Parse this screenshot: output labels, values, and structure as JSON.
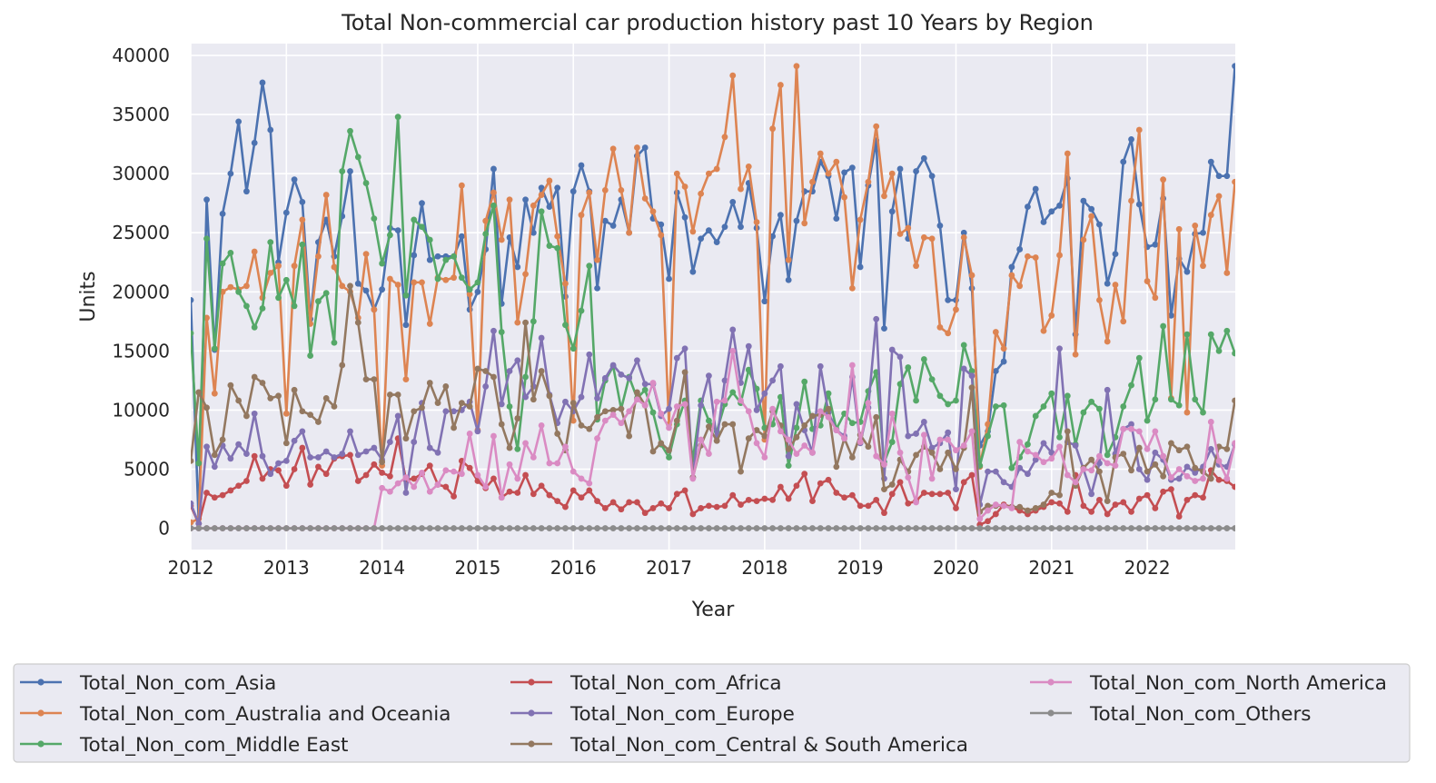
{
  "chart_data": {
    "type": "line",
    "title": "Total Non-commercial car production history past 10 Years by Region",
    "xlabel": "Year",
    "ylabel": "Units",
    "xlim": [
      2012.0,
      2022.92
    ],
    "ylim": [
      -1800,
      41000
    ],
    "x_ticks": [
      2012,
      2013,
      2014,
      2015,
      2016,
      2017,
      2018,
      2019,
      2020,
      2021,
      2022
    ],
    "y_ticks": [
      0,
      5000,
      10000,
      15000,
      20000,
      25000,
      30000,
      35000,
      40000
    ],
    "x_start": 2012.0,
    "x_step": 0.08333,
    "grid": true,
    "legend_position": "below",
    "colors": {
      "background": "#eaeaf2",
      "grid": "#ffffff",
      "text": "#262626"
    },
    "series": [
      {
        "name": "Total_Non_com_Asia",
        "color": "#4c72b0",
        "values": [
          19300,
          400,
          27800,
          15100,
          26600,
          30000,
          34400,
          28500,
          32600,
          37700,
          33700,
          22500,
          26700,
          29500,
          27600,
          17700,
          24200,
          26100,
          23000,
          26400,
          30200,
          20700,
          20100,
          18500,
          20200,
          25400,
          25200,
          17200,
          23100,
          27500,
          22700,
          23000,
          23000,
          23000,
          24700,
          18500,
          20000,
          23600,
          30400,
          19000,
          24600,
          22100,
          27800,
          25000,
          28800,
          27200,
          28800,
          19600,
          28500,
          30700,
          28500,
          20300,
          26000,
          25600,
          27800,
          25000,
          31500,
          32200,
          26200,
          25700,
          21100,
          28400,
          26300,
          21700,
          24500,
          25200,
          24200,
          25500,
          27600,
          25500,
          29200,
          25400,
          19200,
          24700,
          26500,
          21000,
          26000,
          28500,
          28500,
          31000,
          29800,
          26200,
          30100,
          30500,
          22100,
          29000,
          32800,
          16900,
          26800,
          30400,
          24500,
          30200,
          31300,
          29800,
          25600,
          19300,
          19300,
          25000,
          20300,
          7000,
          8200,
          13300,
          14100,
          22100,
          23600,
          27200,
          28700,
          25900,
          26800,
          27300,
          29600,
          16400,
          27700,
          27000,
          25700,
          20700,
          23200,
          31000,
          32900,
          27400,
          23800,
          24000,
          27900,
          18000,
          22800,
          21700,
          24900,
          25000,
          31000,
          29800,
          29800,
          39100
        ]
      },
      {
        "name": "Total_Non_com_Australia and Oceania",
        "color": "#dd8452",
        "values": [
          500,
          800,
          17800,
          11400,
          20000,
          20400,
          20200,
          20500,
          23400,
          19500,
          21600,
          22200,
          9700,
          22200,
          26100,
          17300,
          23000,
          28200,
          22100,
          20500,
          20000,
          17800,
          23200,
          18500,
          5300,
          21100,
          20600,
          12600,
          20800,
          20800,
          17300,
          21200,
          21000,
          21200,
          29000,
          19800,
          8300,
          26000,
          28400,
          24400,
          27800,
          17400,
          21500,
          27300,
          28200,
          29400,
          24700,
          20700,
          9100,
          26500,
          28400,
          22700,
          28600,
          32100,
          28600,
          25000,
          32200,
          27900,
          26800,
          24800,
          8800,
          30000,
          28900,
          25100,
          28300,
          30000,
          30400,
          33100,
          38300,
          28700,
          30600,
          25900,
          7500,
          33800,
          37500,
          22700,
          39100,
          25800,
          29300,
          31700,
          30000,
          31000,
          28000,
          20300,
          26100,
          29300,
          34000,
          28100,
          30000,
          24900,
          25400,
          22200,
          24600,
          24500,
          17000,
          16500,
          18500,
          24600,
          21400,
          5200,
          8800,
          16600,
          15200,
          21400,
          20500,
          23000,
          22900,
          16700,
          18000,
          23100,
          31700,
          14700,
          24400,
          26400,
          19300,
          15800,
          20600,
          17500,
          27700,
          33700,
          20900,
          19500,
          29500,
          11000,
          25300,
          9800,
          25600,
          22200,
          26500,
          28100,
          21600,
          29300
        ]
      },
      {
        "name": "Total_Non_com_Middle East",
        "color": "#55a868",
        "values": [
          16500,
          5500,
          24500,
          15200,
          22400,
          23300,
          20000,
          18800,
          17000,
          18600,
          24200,
          19500,
          21000,
          18800,
          24000,
          14600,
          19200,
          19900,
          15700,
          30200,
          33600,
          31400,
          29200,
          26200,
          22400,
          24800,
          34800,
          19700,
          26100,
          25500,
          24400,
          21100,
          22700,
          23000,
          21200,
          20200,
          20800,
          24900,
          27300,
          16600,
          10300,
          6700,
          12800,
          17500,
          26800,
          23900,
          23700,
          17200,
          15200,
          18400,
          22200,
          9200,
          12500,
          13700,
          10100,
          12800,
          11000,
          11700,
          9800,
          7100,
          6000,
          8800,
          10800,
          5800,
          10800,
          9100,
          8200,
          10500,
          11500,
          10600,
          13400,
          11800,
          8500,
          8800,
          11100,
          5300,
          8500,
          12400,
          8400,
          8700,
          11400,
          8400,
          9700,
          8900,
          9000,
          11600,
          13200,
          5600,
          7300,
          12200,
          13600,
          10800,
          14300,
          12600,
          11200,
          10500,
          10800,
          15500,
          13300,
          5300,
          7800,
          10300,
          10400,
          5100,
          6000,
          7100,
          9500,
          10300,
          11400,
          7700,
          11200,
          7100,
          9800,
          10700,
          10100,
          6200,
          7700,
          10300,
          12100,
          14400,
          9100,
          10900,
          17100,
          10900,
          10400,
          16400,
          10900,
          9800,
          16400,
          15000,
          16700,
          14800
        ]
      },
      {
        "name": "Total_Non_com_Africa",
        "color": "#c44e52",
        "values": [
          1900,
          400,
          3000,
          2600,
          2800,
          3200,
          3600,
          4000,
          6100,
          4200,
          5000,
          4900,
          3600,
          5000,
          6800,
          3700,
          5200,
          4600,
          5900,
          6100,
          6200,
          4000,
          4500,
          5400,
          4700,
          4400,
          7600,
          4100,
          4200,
          4600,
          5300,
          3700,
          3500,
          2700,
          5700,
          5100,
          4000,
          3400,
          4200,
          2600,
          3100,
          3000,
          4500,
          2900,
          3600,
          2800,
          2300,
          1800,
          3200,
          2600,
          3200,
          2300,
          1700,
          2200,
          1600,
          2200,
          2200,
          1300,
          1700,
          2100,
          1700,
          2900,
          3200,
          1200,
          1700,
          1900,
          1800,
          1900,
          2800,
          2000,
          2400,
          2300,
          2500,
          2400,
          3500,
          2500,
          3600,
          4600,
          2300,
          3800,
          4100,
          3000,
          2600,
          2800,
          1900,
          1900,
          2400,
          1300,
          2900,
          3900,
          2100,
          2300,
          3000,
          2900,
          2900,
          3000,
          1700,
          3900,
          4500,
          300,
          600,
          1200,
          2000,
          1800,
          1500,
          1200,
          1500,
          1800,
          2200,
          2100,
          1400,
          4500,
          1900,
          1400,
          2400,
          1200,
          2000,
          2200,
          1400,
          2500,
          2800,
          1700,
          3100,
          3300,
          1000,
          2400,
          2800,
          2600,
          4900,
          4100,
          4000,
          3500
        ]
      },
      {
        "name": "Total_Non_com_Europe",
        "color": "#8172b3",
        "values": [
          2100,
          400,
          6900,
          5200,
          7000,
          5900,
          7100,
          6300,
          9700,
          6100,
          4600,
          5500,
          5700,
          7400,
          8200,
          6000,
          6000,
          6500,
          6000,
          6300,
          8200,
          6200,
          6500,
          6800,
          5800,
          7300,
          9500,
          3000,
          7300,
          10600,
          6800,
          6400,
          9900,
          9900,
          10000,
          10700,
          8200,
          12000,
          16700,
          10500,
          13300,
          14200,
          11100,
          12000,
          16100,
          11300,
          8900,
          10700,
          9900,
          11100,
          14700,
          11000,
          12700,
          13800,
          13000,
          12700,
          14200,
          12200,
          12200,
          9500,
          10100,
          14400,
          15200,
          4300,
          10400,
          12900,
          7400,
          12500,
          16800,
          12300,
          15400,
          10000,
          11400,
          12500,
          13700,
          6100,
          10500,
          8300,
          6400,
          13700,
          9800,
          8300,
          7800,
          12800,
          7200,
          10200,
          17700,
          4200,
          15100,
          14500,
          7800,
          8000,
          9000,
          6800,
          7200,
          8100,
          3300,
          13500,
          12900,
          2000,
          4800,
          4800,
          3900,
          3500,
          5100,
          4600,
          5800,
          7200,
          6400,
          15200,
          7300,
          7000,
          5000,
          2900,
          5500,
          11700,
          6300,
          8400,
          8800,
          5000,
          4100,
          6400,
          5800,
          4100,
          4200,
          5200,
          4700,
          5200,
          6700,
          5400,
          5200,
          7100
        ]
      },
      {
        "name": "Total_Non_com_Central & South America",
        "color": "#937860",
        "values": [
          5700,
          11500,
          10200,
          6200,
          7500,
          12100,
          10800,
          9500,
          12800,
          12300,
          11000,
          11200,
          7200,
          11700,
          9900,
          9600,
          9000,
          11000,
          10300,
          13800,
          20500,
          17400,
          12600,
          12600,
          5600,
          11300,
          11300,
          7600,
          9900,
          10200,
          12300,
          10600,
          12000,
          8500,
          10600,
          10300,
          13500,
          13300,
          12800,
          8800,
          6800,
          9300,
          17400,
          10900,
          13300,
          11200,
          8000,
          6600,
          10600,
          8700,
          8400,
          9400,
          9900,
          10000,
          10100,
          7800,
          11500,
          10400,
          6500,
          7200,
          6600,
          9100,
          13200,
          4300,
          7000,
          8600,
          7400,
          8800,
          8800,
          4800,
          7600,
          8300,
          7800,
          9900,
          8700,
          6700,
          7700,
          8700,
          9500,
          9600,
          10100,
          5200,
          7600,
          6000,
          7900,
          6900,
          9400,
          3300,
          3700,
          5800,
          4800,
          6200,
          6900,
          6400,
          5000,
          6400,
          5000,
          6800,
          11900,
          1400,
          1900,
          1900,
          1900,
          1800,
          1800,
          1500,
          1700,
          2000,
          3000,
          2800,
          8200,
          3600,
          5100,
          5800,
          4800,
          2300,
          6000,
          6300,
          4900,
          6800,
          4800,
          5400,
          4400,
          7200,
          6600,
          6900,
          5100,
          4800,
          4200,
          6900,
          6700,
          10800
        ]
      },
      {
        "name": "Total_Non_com_North America",
        "color": "#da8bc3",
        "values": [
          0,
          0,
          0,
          0,
          0,
          0,
          0,
          0,
          0,
          0,
          0,
          0,
          0,
          0,
          0,
          0,
          0,
          0,
          0,
          0,
          0,
          0,
          0,
          0,
          3400,
          3100,
          3800,
          4300,
          3500,
          4700,
          3100,
          3700,
          4900,
          4800,
          4600,
          8000,
          4500,
          3500,
          7800,
          2600,
          5400,
          4200,
          7200,
          6000,
          8700,
          5500,
          5500,
          6900,
          4800,
          4200,
          3800,
          7600,
          9100,
          9600,
          8900,
          9900,
          10900,
          10400,
          12300,
          9700,
          8500,
          10300,
          10500,
          4200,
          7500,
          6300,
          10700,
          10800,
          15000,
          10800,
          9900,
          7200,
          6000,
          10100,
          8200,
          7500,
          6300,
          7000,
          6400,
          9900,
          9400,
          8300,
          7600,
          13800,
          7300,
          10600,
          6100,
          5400,
          9700,
          6400,
          4300,
          2200,
          7900,
          4200,
          7500,
          7500,
          6600,
          7000,
          8200,
          800,
          1500,
          2000,
          1900,
          1700,
          7300,
          6500,
          6200,
          5600,
          5900,
          6900,
          4500,
          3900,
          5000,
          4900,
          6100,
          5500,
          5300,
          8400,
          8400,
          8200,
          6700,
          8200,
          6100,
          4300,
          5000,
          4400,
          4000,
          4200,
          9000,
          5700,
          4200,
          7200
        ]
      },
      {
        "name": "Total_Non_com_Others",
        "color": "#8c8c8c",
        "values": [
          0,
          0,
          0,
          0,
          0,
          0,
          0,
          0,
          0,
          0,
          0,
          0,
          0,
          0,
          0,
          0,
          0,
          0,
          0,
          0,
          0,
          0,
          0,
          0,
          0,
          0,
          0,
          0,
          0,
          0,
          0,
          0,
          0,
          0,
          0,
          0,
          0,
          0,
          0,
          0,
          0,
          0,
          0,
          0,
          0,
          0,
          0,
          0,
          0,
          0,
          0,
          0,
          0,
          0,
          0,
          0,
          0,
          0,
          0,
          0,
          0,
          0,
          0,
          0,
          0,
          0,
          0,
          0,
          0,
          0,
          0,
          0,
          0,
          0,
          0,
          0,
          0,
          0,
          0,
          0,
          0,
          0,
          0,
          0,
          0,
          0,
          0,
          0,
          0,
          0,
          0,
          0,
          0,
          0,
          0,
          0,
          0,
          0,
          0,
          0,
          0,
          0,
          0,
          0,
          0,
          0,
          0,
          0,
          0,
          0,
          0,
          0,
          0,
          0,
          0,
          0,
          0,
          0,
          0,
          0,
          0,
          0,
          0,
          0,
          0,
          0,
          0,
          0,
          0,
          0,
          0,
          0
        ]
      }
    ]
  }
}
